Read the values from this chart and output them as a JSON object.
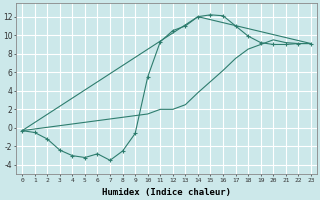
{
  "xlabel": "Humidex (Indice chaleur)",
  "bg_color": "#cce8ea",
  "grid_color": "#ffffff",
  "line_color": "#2e7d6e",
  "xlim": [
    -0.5,
    23.5
  ],
  "ylim": [
    -5.0,
    13.5
  ],
  "xticks": [
    0,
    1,
    2,
    3,
    4,
    5,
    6,
    7,
    8,
    9,
    10,
    11,
    12,
    13,
    14,
    15,
    16,
    17,
    18,
    19,
    20,
    21,
    22,
    23
  ],
  "yticks": [
    -4,
    -2,
    0,
    2,
    4,
    6,
    8,
    10,
    12
  ],
  "curve1_x": [
    0,
    1,
    2,
    3,
    4,
    5,
    6,
    7,
    8,
    9,
    10,
    11,
    12,
    13,
    14,
    15,
    16,
    17,
    18,
    19,
    20,
    21,
    22,
    23
  ],
  "curve1_y": [
    -0.3,
    -0.5,
    -1.2,
    -2.4,
    -3.0,
    -3.2,
    -2.8,
    -3.5,
    -2.5,
    -0.6,
    5.5,
    9.3,
    10.5,
    11.0,
    12.0,
    12.2,
    12.1,
    11.0,
    9.9,
    9.2,
    9.0,
    9.0,
    9.1,
    9.1
  ],
  "curve2_x": [
    0,
    10,
    11,
    12,
    13,
    14,
    15,
    16,
    17,
    18,
    19,
    20,
    21,
    22,
    23
  ],
  "curve2_y": [
    -0.3,
    1.5,
    2.0,
    2.0,
    2.5,
    3.8,
    5.0,
    6.2,
    7.5,
    8.5,
    9.0,
    9.5,
    9.2,
    9.1,
    9.1
  ],
  "curve3_x": [
    0,
    14,
    23
  ],
  "curve3_y": [
    -0.3,
    12.0,
    9.1
  ]
}
